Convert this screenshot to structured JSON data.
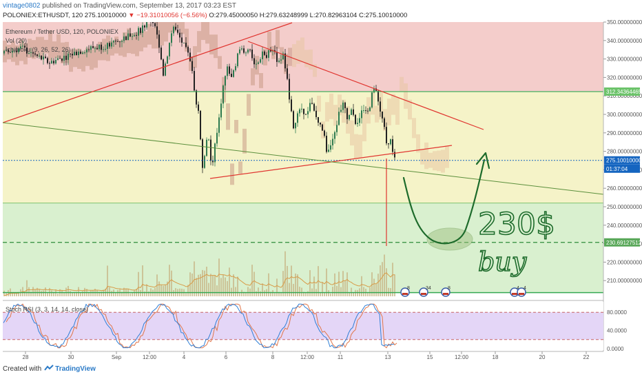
{
  "header": {
    "user": "vintage0802",
    "published": " published on TradingView.com, September 13, 2017 03:23 EST",
    "symbol": "POLONIEX:ETHUSDT, 120  275.10010000",
    "change": " ▼ −19.31010056 (−6.56%)",
    "ohlc": " O:279.45000050 H:279.63248999 L:270.82963104 C:275.10010000"
  },
  "legend": {
    "pair": "Ethereum / Tether USD, 120, POLONIEX",
    "vol": "Vol (20)",
    "ichimoku": "Ichimoku (9, 26, 52, 26)",
    "stoch": "Stoch RSI (3, 3, 14, 14, close)"
  },
  "footer": {
    "created": "Created with",
    "brand": "TradingView"
  },
  "annotation": {
    "target": "230$",
    "action": "buy"
  },
  "colors": {
    "bull": "#2d7a4f",
    "bear": "#222222",
    "red_zone": "#f2c4c2",
    "yellow_zone": "#f5f3c8",
    "green_zone": "#d9f0cf",
    "stoch_band": "#e4d6f7",
    "trendline": "#e0342f",
    "hand_drawn": "#1d6b2b",
    "price_badge": "#1565c0",
    "level_green": "#34a853"
  },
  "chart_data": {
    "type": "candlestick",
    "y_axis": {
      "min": 200,
      "max": 350,
      "ticks": [
        "210.00000000",
        "220.00000000",
        "230.00000000",
        "240.00000000",
        "250.00000000",
        "260.00000000",
        "270.00000000",
        "280.00000000",
        "290.00000000",
        "300.00000000",
        "310.00000000",
        "320.00000000",
        "330.00000000",
        "340.00000000",
        "350.00000000"
      ]
    },
    "x_axis": {
      "ticks": [
        "28",
        "30",
        "Sep",
        "12:00",
        "4",
        "6",
        "8",
        "12:00",
        "11",
        "13",
        "15",
        "12:00",
        "18",
        "20",
        "22"
      ]
    },
    "last_price": "275.10010000",
    "countdown": "01:37:04",
    "levels": [
      {
        "label": "312.34364465",
        "price": 312.34
      },
      {
        "label": "230.69127512",
        "price": 230.69
      }
    ],
    "stoch_rsi": {
      "ticks": [
        "80.0000",
        "40.0000",
        "0.0000"
      ],
      "bands": [
        80,
        20
      ]
    },
    "event_markers": [
      "8",
      "34",
      "8",
      "4",
      "4"
    ]
  }
}
